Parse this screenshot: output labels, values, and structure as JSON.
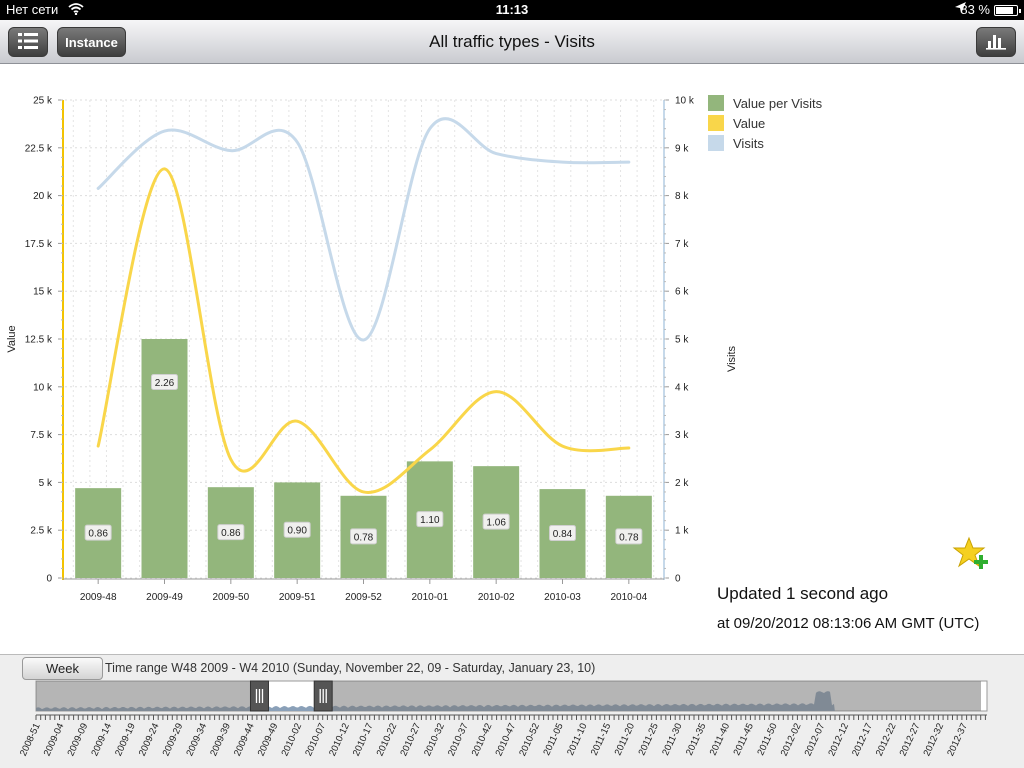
{
  "status_bar": {
    "carrier": "Нет сети",
    "time": "11:13",
    "battery": "83 %",
    "battery_level": 0.83
  },
  "nav": {
    "title": "All traffic types - Visits",
    "instance_label": "Instance",
    "list_icon": "list-icon",
    "chart_icon": "bar-chart-icon"
  },
  "chart_data": {
    "type": "bar",
    "categories": [
      "2009-48",
      "2009-49",
      "2009-50",
      "2009-51",
      "2009-52",
      "2010-01",
      "2010-02",
      "2010-03",
      "2010-04"
    ],
    "series": [
      {
        "name": "Value per Visits",
        "kind": "bar",
        "axis": "left",
        "color": "#93b67c",
        "values": [
          4700,
          12500,
          4750,
          5000,
          4300,
          6100,
          5850,
          4650,
          4300
        ],
        "labels": [
          "0.86",
          "2.26",
          "0.86",
          "0.90",
          "0.78",
          "1.10",
          "1.06",
          "0.84",
          "0.78"
        ]
      },
      {
        "name": "Value",
        "kind": "line",
        "axis": "left",
        "color": "#f9d64a",
        "values": [
          6900,
          21400,
          6200,
          8200,
          4500,
          6700,
          9750,
          6900,
          6800
        ]
      },
      {
        "name": "Visits",
        "kind": "line",
        "axis": "right",
        "color": "#c6d9ea",
        "values": [
          8150,
          9350,
          8940,
          9120,
          4980,
          9400,
          8880,
          8700,
          8700
        ]
      }
    ],
    "y_left": {
      "label": "Value",
      "min": 0,
      "max": 25000,
      "ticks": [
        0,
        2500,
        5000,
        7500,
        10000,
        12500,
        15000,
        17500,
        20000,
        22500,
        25000
      ],
      "tick_labels": [
        "0",
        "2.5 k",
        "5 k",
        "7.5 k",
        "10 k",
        "12.5 k",
        "15 k",
        "17.5 k",
        "20 k",
        "22.5 k",
        "25 k"
      ]
    },
    "y_right": {
      "label": "Visits",
      "min": 0,
      "max": 10000,
      "ticks": [
        0,
        1000,
        2000,
        3000,
        4000,
        5000,
        6000,
        7000,
        8000,
        9000,
        10000
      ],
      "tick_labels": [
        "0",
        "1 k",
        "2 k",
        "3 k",
        "4 k",
        "5 k",
        "6 k",
        "7 k",
        "8 k",
        "9 k",
        "10 k"
      ]
    },
    "grid": true,
    "legend_position": "top-right"
  },
  "legend": [
    {
      "name": "Value per Visits",
      "color": "#93b67c"
    },
    {
      "name": "Value",
      "color": "#f9d64a"
    },
    {
      "name": "Visits",
      "color": "#c6d9ea"
    }
  ],
  "updated": "Updated 1 second ago",
  "updated_at": "at 09/20/2012 08:13:06 AM GMT (UTC)",
  "range": {
    "button_label": "Week",
    "label": "Time range  W48 2009 - W4 2010   (Sunday, November 22, 09 - Saturday, January 23, 10)",
    "selection_start_fraction": 0.235,
    "selection_end_fraction": 0.302,
    "axis_labels": [
      "2008-51",
      "2009-04",
      "2009-09",
      "2009-14",
      "2009-19",
      "2009-24",
      "2009-29",
      "2009-34",
      "2009-39",
      "2009-44",
      "2009-49",
      "2010-02",
      "2010-07",
      "2010-12",
      "2010-17",
      "2010-22",
      "2010-27",
      "2010-32",
      "2010-37",
      "2010-42",
      "2010-47",
      "2010-52",
      "2011-05",
      "2011-10",
      "2011-15",
      "2011-20",
      "2011-25",
      "2011-30",
      "2011-35",
      "2011-40",
      "2011-45",
      "2011-50",
      "2012-02",
      "2012-07",
      "2012-12",
      "2012-17",
      "2012-22",
      "2012-27",
      "2012-32",
      "2012-37"
    ]
  }
}
